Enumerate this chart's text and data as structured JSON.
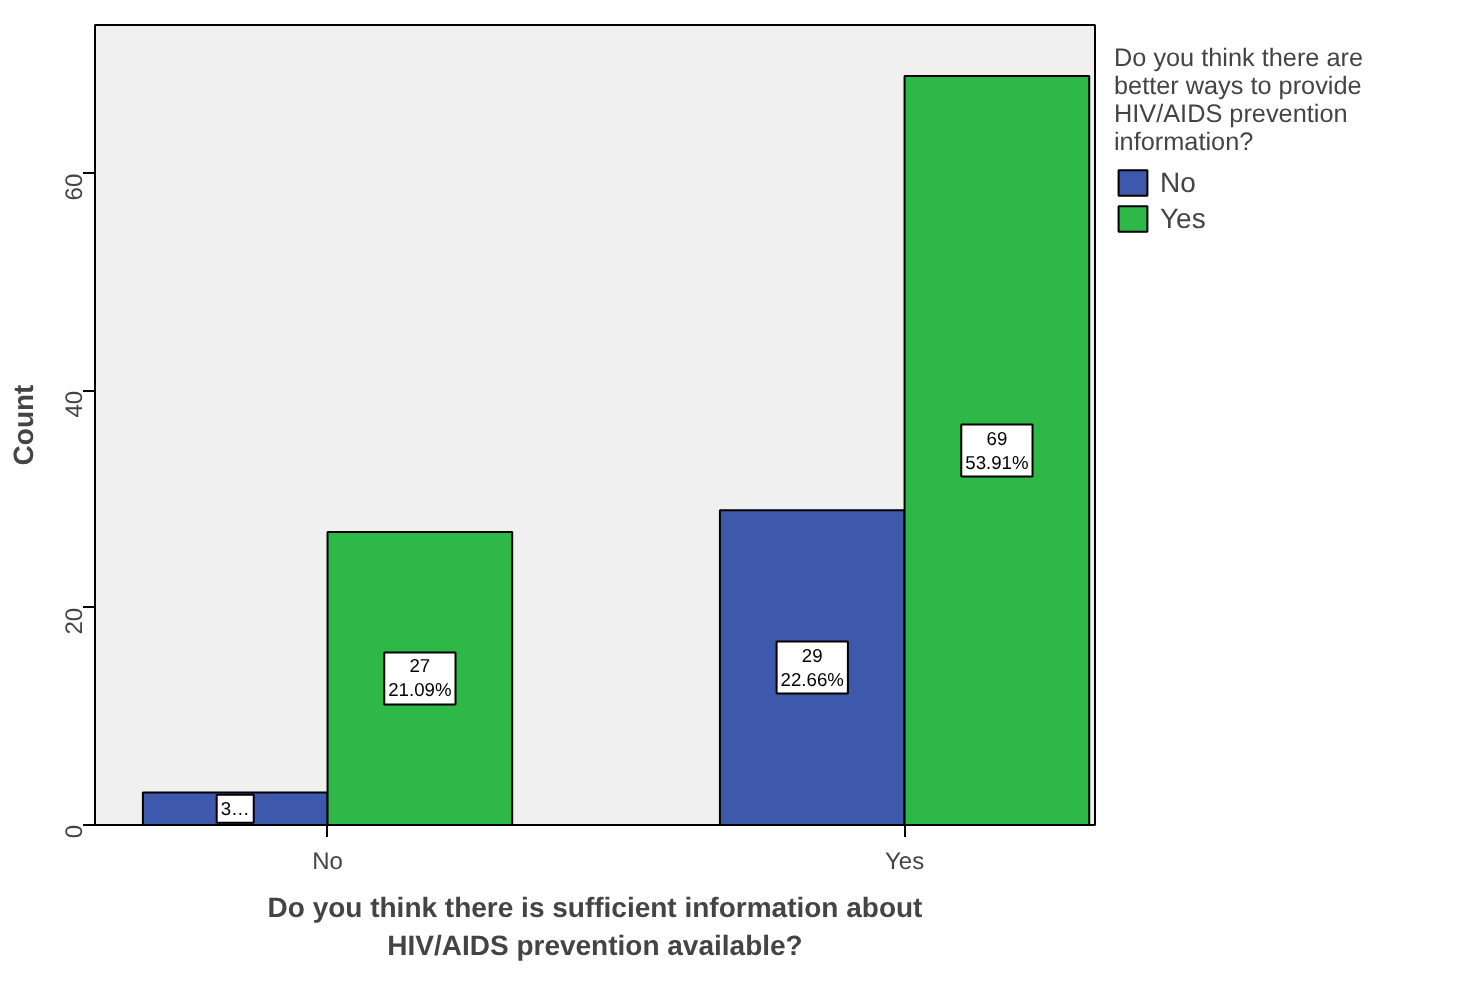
{
  "chart_data": {
    "type": "bar",
    "xlabel": "Do you think there is sufficient information about\nHIV/AIDS prevention available?",
    "ylabel": "Count",
    "legend_title": "Do you think there are\nbetter ways to provide\nHIV/AIDS prevention\ninformation?",
    "categories": [
      "No",
      "Yes"
    ],
    "series": [
      {
        "name": "No",
        "color": "#3e58ac",
        "values": [
          3,
          29
        ],
        "value_labels": [
          "3…",
          "29\n22.66%"
        ]
      },
      {
        "name": "Yes",
        "color": "#2eb848",
        "values": [
          27,
          69
        ],
        "value_labels": [
          "27\n21.09%",
          "69\n53.91%"
        ]
      }
    ],
    "ylim": [
      0,
      73.7
    ],
    "yticks": [
      0,
      20,
      40,
      60
    ],
    "grid": false,
    "legend": "right"
  }
}
